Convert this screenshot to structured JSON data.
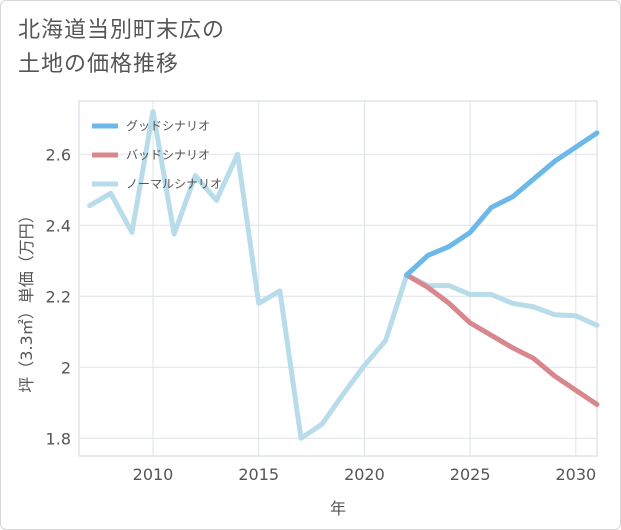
{
  "title_lines": [
    "北海道当別町末広の",
    "土地の価格推移"
  ],
  "chart_data": {
    "type": "line",
    "xlabel": "年",
    "ylabel": "坪（3.3㎡）単価（万円）",
    "xlim": [
      2006.5,
      2031
    ],
    "ylim": [
      1.75,
      2.75
    ],
    "x_ticks": [
      2010,
      2015,
      2020,
      2025,
      2030
    ],
    "y_ticks": [
      1.8,
      2,
      2.2,
      2.4,
      2.6
    ],
    "y_tick_labels": [
      "1.8",
      "2",
      "2.2",
      "2.4",
      "2.6"
    ],
    "grid": true,
    "legend_position": "top-left",
    "series": [
      {
        "name": "グッドシナリオ",
        "color": "#6cb8e8",
        "x": [
          2022,
          2023,
          2024,
          2025,
          2026,
          2027,
          2028,
          2029,
          2030,
          2031
        ],
        "y": [
          2.26,
          2.315,
          2.34,
          2.38,
          2.45,
          2.48,
          2.53,
          2.58,
          2.62,
          2.66
        ]
      },
      {
        "name": "バッドシナリオ",
        "color": "#d9878f",
        "x": [
          2022,
          2023,
          2024,
          2025,
          2026,
          2027,
          2028,
          2029,
          2030,
          2031
        ],
        "y": [
          2.26,
          2.225,
          2.18,
          2.125,
          2.09,
          2.055,
          2.025,
          1.975,
          1.935,
          1.895
        ]
      },
      {
        "name": "ノーマルシナリオ",
        "color": "#b8dcea",
        "x": [
          2007,
          2008,
          2009,
          2010,
          2011,
          2012,
          2013,
          2014,
          2015,
          2016,
          2017,
          2018,
          2019,
          2020,
          2021,
          2022,
          2023,
          2024,
          2025,
          2026,
          2027,
          2028,
          2029,
          2030,
          2031
        ],
        "y": [
          2.455,
          2.49,
          2.38,
          2.72,
          2.375,
          2.54,
          2.47,
          2.6,
          2.18,
          2.215,
          1.8,
          1.84,
          1.925,
          2.005,
          2.075,
          2.26,
          2.23,
          2.23,
          2.205,
          2.205,
          2.18,
          2.17,
          2.148,
          2.145,
          2.118
        ]
      }
    ]
  }
}
